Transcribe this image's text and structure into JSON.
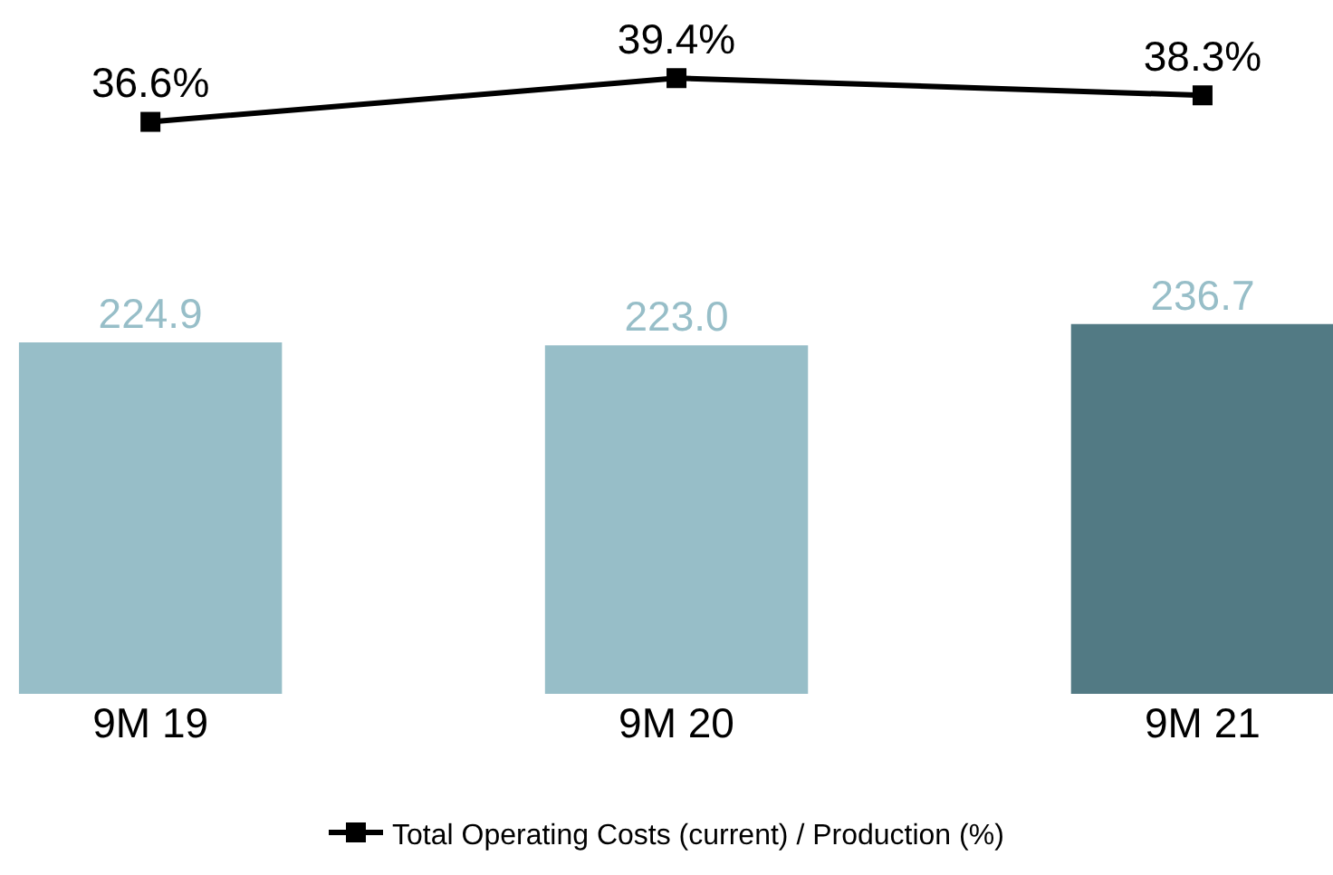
{
  "chart_data": {
    "type": "bar",
    "categories": [
      "9M 19",
      "9M 20",
      "9M 21"
    ],
    "series": [
      {
        "colors": [
          "#97bec8",
          "#97bec8",
          "#527a84"
        ],
        "values": [
          224.9,
          223.0,
          236.7
        ],
        "value_labels": [
          "224.9",
          "223.0",
          "236.7"
        ]
      },
      {
        "type": "line",
        "name": "Total Operating Costs (current) / Production (%)",
        "color": "#000000",
        "values": [
          36.6,
          39.4,
          38.3
        ],
        "axis": "y2",
        "marker": "square",
        "line_style": "solid",
        "value_labels": [
          "36.6%",
          "39.4%",
          "38.3%"
        ]
      }
    ],
    "ylim": [
      0,
      444
    ],
    "y2lim": [
      0,
      44.4
    ],
    "legend": "bottom",
    "tick_labels": "x"
  }
}
